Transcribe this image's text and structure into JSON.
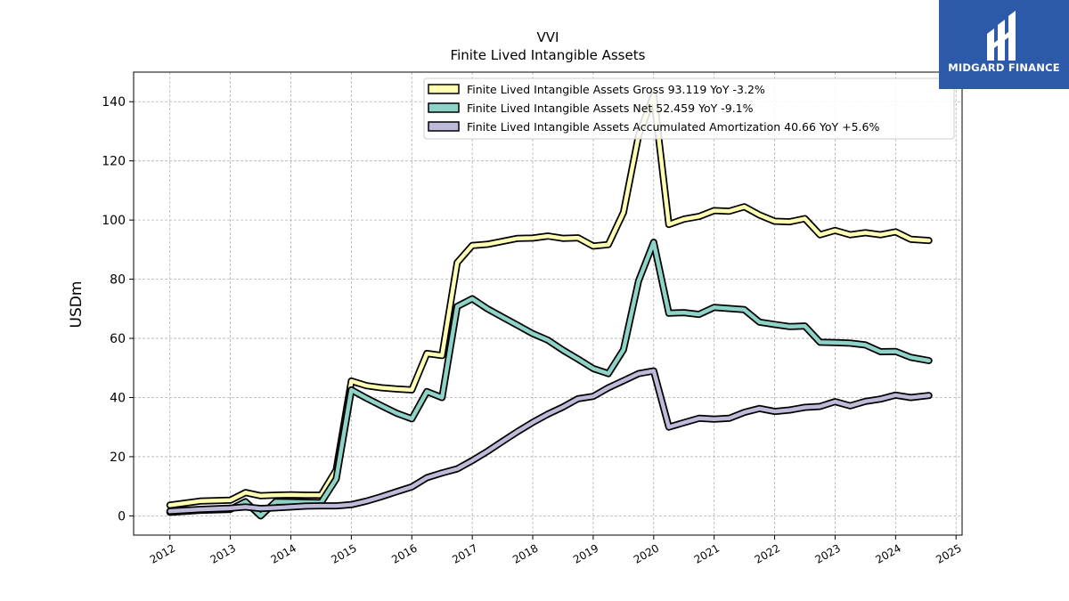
{
  "brand": {
    "name": "MIDGARD FINANCE",
    "bg_color": "#2c5aa8"
  },
  "chart_data": {
    "type": "line",
    "title": "VVI",
    "subtitle": "Finite Lived Intangible Assets",
    "ylabel": "USDm",
    "xlabel": "",
    "ylim": [
      -6.5,
      150
    ],
    "xlim": [
      2011.4,
      2025.1
    ],
    "yticks": [
      0,
      20,
      40,
      60,
      80,
      100,
      120,
      140
    ],
    "xticks": [
      2012,
      2013,
      2014,
      2015,
      2016,
      2017,
      2018,
      2019,
      2020,
      2021,
      2022,
      2023,
      2024,
      2025
    ],
    "grid": true,
    "legend_position": "top-right",
    "series": [
      {
        "name": "Finite Lived Intangible Assets Gross  93.119 YoY -3.2%",
        "color": "#ffffb3",
        "x": [
          2012.0,
          2012.5,
          2013.0,
          2013.25,
          2013.5,
          2013.75,
          2014.0,
          2014.25,
          2014.5,
          2014.75,
          2015.0,
          2015.25,
          2015.5,
          2015.75,
          2016.0,
          2016.25,
          2016.5,
          2016.75,
          2017.0,
          2017.25,
          2017.5,
          2017.75,
          2018.0,
          2018.25,
          2018.5,
          2018.75,
          2019.0,
          2019.25,
          2019.5,
          2019.75,
          2020.0,
          2020.25,
          2020.5,
          2020.75,
          2021.0,
          2021.25,
          2021.5,
          2021.75,
          2022.0,
          2022.25,
          2022.5,
          2022.75,
          2023.0,
          2023.25,
          2023.5,
          2023.75,
          2024.0,
          2024.25,
          2024.55
        ],
        "values": [
          3.6,
          5.0,
          5.3,
          7.9,
          6.8,
          7.0,
          7.1,
          7.0,
          7.0,
          15.5,
          45.6,
          44.0,
          43.3,
          42.9,
          42.6,
          54.9,
          54.2,
          85.6,
          91.4,
          91.8,
          92.8,
          93.8,
          93.9,
          94.6,
          93.8,
          94.0,
          91.2,
          91.7,
          102.6,
          128.5,
          142.2,
          98.5,
          100.3,
          101.2,
          103.2,
          103.0,
          104.5,
          101.7,
          99.6,
          99.4,
          100.5,
          95.0,
          96.5,
          95.0,
          95.7,
          95.0,
          96.0,
          93.5,
          93.1
        ]
      },
      {
        "name": "Finite Lived Intangible Assets Net  52.459 YoY -9.1%",
        "color": "#8dd3c7",
        "x": [
          2012.0,
          2012.5,
          2013.0,
          2013.25,
          2013.5,
          2013.75,
          2014.0,
          2014.25,
          2014.5,
          2014.75,
          2015.0,
          2015.25,
          2015.5,
          2015.75,
          2016.0,
          2016.25,
          2016.5,
          2016.75,
          2017.0,
          2017.25,
          2017.5,
          2017.75,
          2018.0,
          2018.25,
          2018.5,
          2018.75,
          2019.0,
          2019.25,
          2019.5,
          2019.75,
          2020.0,
          2020.25,
          2020.5,
          2020.75,
          2021.0,
          2021.25,
          2021.5,
          2021.75,
          2022.0,
          2022.25,
          2022.5,
          2022.75,
          2023.0,
          2023.25,
          2023.5,
          2023.75,
          2024.0,
          2024.25,
          2024.55
        ],
        "values": [
          1.2,
          1.9,
          2.2,
          4.8,
          0.0,
          4.8,
          4.7,
          4.6,
          4.5,
          12.5,
          42.6,
          39.8,
          37.2,
          34.7,
          32.8,
          42.0,
          40.0,
          70.8,
          73.4,
          70.0,
          67.2,
          64.4,
          61.6,
          59.4,
          56.0,
          53.0,
          49.8,
          48.1,
          56.2,
          79.4,
          92.5,
          68.5,
          68.7,
          68.1,
          70.5,
          70.1,
          69.7,
          65.5,
          64.7,
          64.0,
          64.2,
          58.7,
          58.6,
          58.4,
          57.8,
          55.5,
          55.6,
          53.6,
          52.5
        ]
      },
      {
        "name": "Finite Lived Intangible Assets Accumulated Amortization  40.66 YoY +5.6%",
        "color": "#bebada",
        "x": [
          2012.0,
          2012.5,
          2013.0,
          2013.25,
          2013.5,
          2013.75,
          2014.0,
          2014.25,
          2014.5,
          2014.75,
          2015.0,
          2015.25,
          2015.5,
          2015.75,
          2016.0,
          2016.25,
          2016.5,
          2016.75,
          2017.0,
          2017.25,
          2017.5,
          2017.75,
          2018.0,
          2018.25,
          2018.5,
          2018.75,
          2019.0,
          2019.25,
          2019.5,
          2019.75,
          2020.0,
          2020.25,
          2020.5,
          2020.75,
          2021.0,
          2021.25,
          2021.5,
          2021.75,
          2022.0,
          2022.25,
          2022.5,
          2022.75,
          2023.0,
          2023.25,
          2023.5,
          2023.75,
          2024.0,
          2024.25,
          2024.55
        ],
        "values": [
          1.6,
          2.2,
          2.6,
          3.0,
          2.5,
          2.7,
          3.0,
          3.3,
          3.4,
          3.4,
          3.8,
          5.0,
          6.5,
          8.2,
          9.8,
          12.9,
          14.5,
          15.9,
          18.7,
          21.8,
          25.2,
          28.5,
          31.6,
          34.4,
          36.8,
          39.6,
          40.4,
          43.3,
          45.7,
          48.1,
          49.0,
          30.0,
          31.5,
          33.0,
          32.7,
          33.0,
          35.0,
          36.3,
          35.3,
          35.8,
          36.7,
          37.0,
          38.6,
          37.2,
          38.7,
          39.5,
          40.8,
          40.0,
          40.7
        ]
      }
    ]
  }
}
